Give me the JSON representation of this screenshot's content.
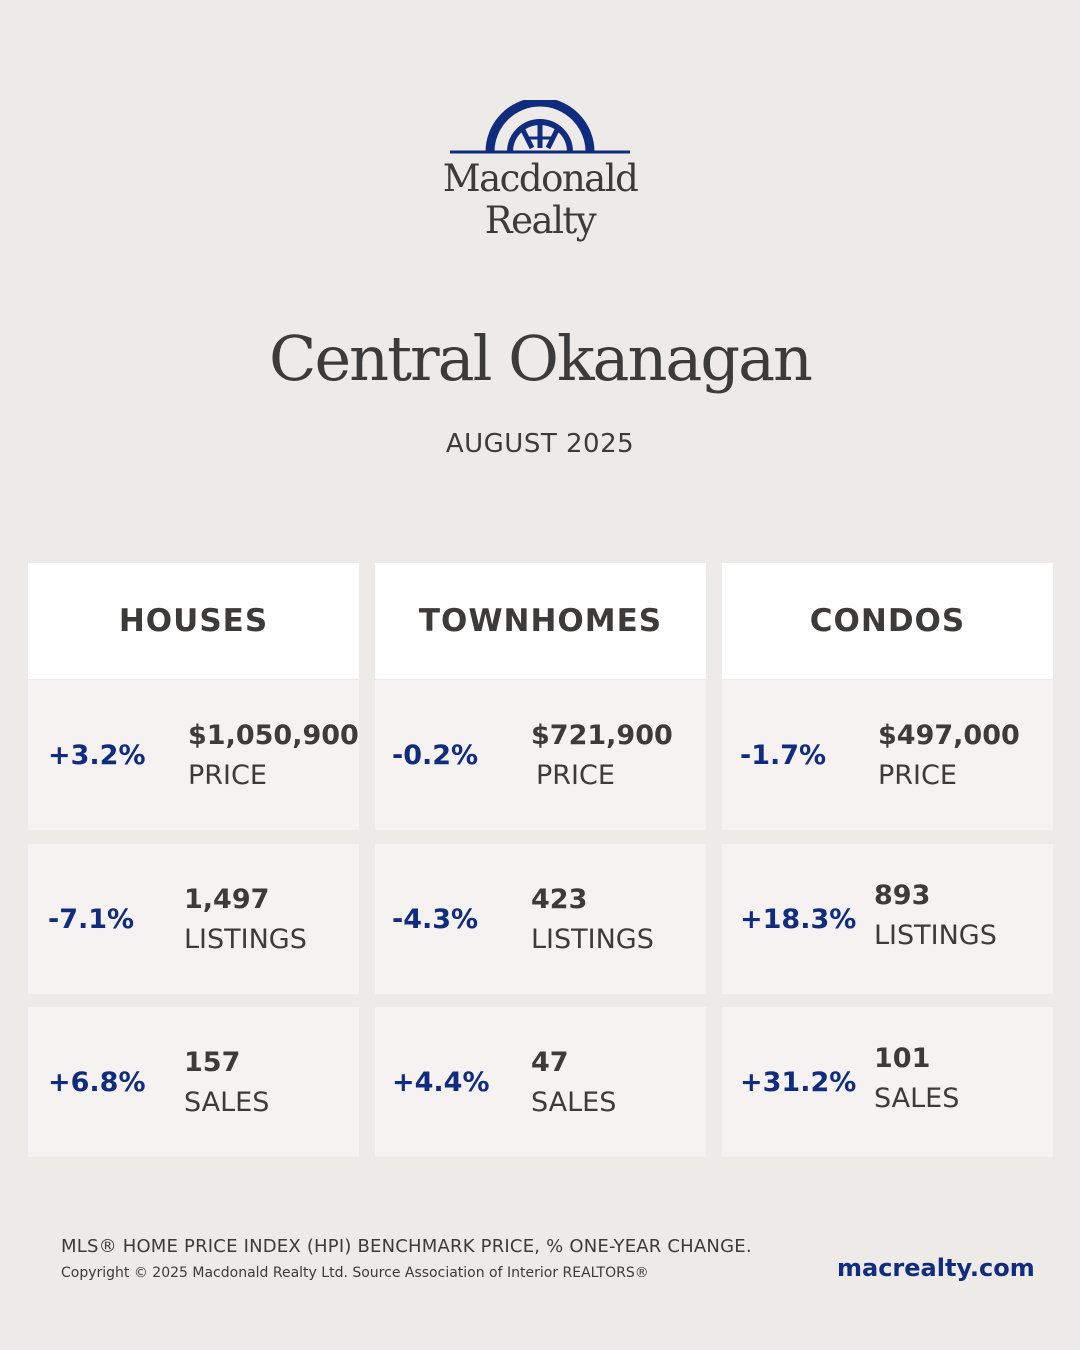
{
  "brand": {
    "logo_line1": "Macdonald",
    "logo_line2": "Realty",
    "accent_color": "#0f2c7e"
  },
  "region": "Central Okanagan",
  "period": "AUGUST 2025",
  "columns": [
    {
      "title": "HOUSES",
      "stats": [
        {
          "change": "+3.2%",
          "value": "$1,050,900",
          "metric": "PRICE"
        },
        {
          "change": "-7.1%",
          "value": "1,497",
          "metric": "LISTINGS"
        },
        {
          "change": "+6.8%",
          "value": "157",
          "metric": "SALES"
        }
      ]
    },
    {
      "title": "TOWNHOMES",
      "stats": [
        {
          "change": "-0.2%",
          "value": "$721,900",
          "metric": "PRICE"
        },
        {
          "change": "-4.3%",
          "value": "423",
          "metric": "LISTINGS"
        },
        {
          "change": "+4.4%",
          "value": "47",
          "metric": "SALES"
        }
      ]
    },
    {
      "title": "CONDOS",
      "stats": [
        {
          "change": "-1.7%",
          "value": "$497,000",
          "metric": "PRICE"
        },
        {
          "change": "+18.3%",
          "value": "893",
          "metric": "LISTINGS"
        },
        {
          "change": "+31.2%",
          "value": "101",
          "metric": "SALES"
        }
      ]
    }
  ],
  "footer": {
    "note": "MLS® HOME PRICE INDEX (HPI) BENCHMARK PRICE, % ONE-YEAR CHANGE.",
    "copyright": "Copyright © 2025 Macdonald Realty Ltd. Source Association of Interior REALTORS®",
    "website": "macrealty.com"
  }
}
